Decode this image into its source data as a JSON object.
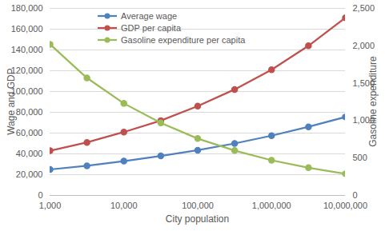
{
  "chart_data": {
    "type": "line",
    "x_label": "City population",
    "y_label": "Wage and GDP",
    "y2_label": "Gasoline expenditure",
    "log": "x",
    "grid": true,
    "legend": "top-left",
    "x": [
      1000,
      3162,
      10000,
      31623,
      100000,
      316228,
      1000000,
      3162278,
      10000000
    ],
    "xlim": [
      1000,
      10000000
    ],
    "xticks": [
      {
        "value": 1000,
        "label": "1,000"
      },
      {
        "value": 10000,
        "label": "10,000"
      },
      {
        "value": 100000,
        "label": "100,000"
      },
      {
        "value": 1000000,
        "label": "1,000,000"
      },
      {
        "value": 10000000,
        "label": "10,000,000"
      }
    ],
    "ylim": [
      0,
      180000
    ],
    "yticks": [
      0,
      {
        "value": 20000,
        "label": "20,000"
      },
      {
        "value": 40000,
        "label": "40,000"
      },
      {
        "value": 60000,
        "label": "60,000"
      },
      {
        "value": 80000,
        "label": "80,000"
      },
      {
        "value": 100000,
        "label": "100,000"
      },
      {
        "value": 120000,
        "label": "120,000"
      },
      {
        "value": 140000,
        "label": "140,000"
      },
      {
        "value": 160000,
        "label": "160,000"
      },
      {
        "value": 180000,
        "label": "180,000"
      }
    ],
    "y2lim": [
      0,
      2500
    ],
    "y2ticks": [
      0,
      500,
      {
        "value": 1000,
        "label": "1,000"
      },
      {
        "value": 1500,
        "label": "1,500"
      },
      {
        "value": 2000,
        "label": "2,000"
      },
      {
        "value": 2500,
        "label": "2,500"
      }
    ],
    "series": [
      {
        "name": "Average wage",
        "color": "#4f81bd",
        "marker": "circle",
        "values": [
          25000,
          28500,
          33000,
          38000,
          43500,
          50000,
          57500,
          66000,
          75500
        ]
      },
      {
        "name": "GDP per capita",
        "color": "#c0504d",
        "marker": "circle",
        "values": [
          43000,
          51000,
          61000,
          72000,
          86000,
          102000,
          121000,
          144000,
          171000
        ]
      },
      {
        "name": "Gasoline expenditure per capita",
        "color": "#9bbb59",
        "marker": "circle",
        "axis": "y2",
        "values": [
          2020,
          1570,
          1230,
          970,
          760,
          600,
          470,
          370,
          290
        ]
      }
    ]
  }
}
